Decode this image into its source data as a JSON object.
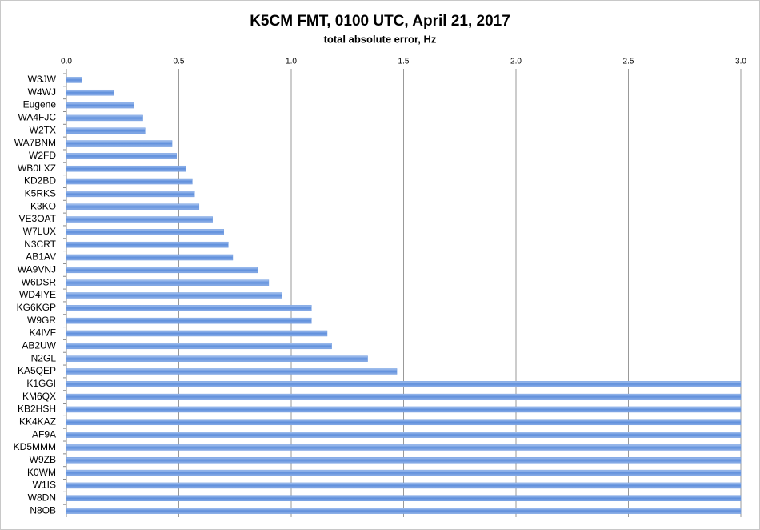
{
  "chart_data": {
    "type": "bar",
    "orientation": "horizontal",
    "title": "K5CM FMT, 0100 UTC, April 21, 2017",
    "subtitle": "total absolute error, Hz",
    "categories": [
      "W3JW",
      "W4WJ",
      "Eugene",
      "WA4FJC",
      "W2TX",
      "WA7BNM",
      "W2FD",
      "WB0LXZ",
      "KD2BD",
      "K5RKS",
      "K3KO",
      "VE3OAT",
      "W7LUX",
      "N3CRT",
      "AB1AV",
      "WA9VNJ",
      "W6DSR",
      "WD4IYE",
      "KG6KGP",
      "W9GR",
      "K4IVF",
      "AB2UW",
      "N2GL",
      "KA5QEP",
      "K1GGI",
      "KM6QX",
      "KB2HSH",
      "KK4KAZ",
      "AF9A",
      "KD5MMM",
      "W9ZB",
      "K0WM",
      "W1IS",
      "W8DN",
      "N8OB"
    ],
    "values": [
      0.07,
      0.21,
      0.3,
      0.34,
      0.35,
      0.47,
      0.49,
      0.53,
      0.56,
      0.57,
      0.59,
      0.65,
      0.7,
      0.72,
      0.74,
      0.85,
      0.9,
      0.96,
      1.09,
      1.09,
      1.16,
      1.18,
      1.34,
      1.47,
      3.0,
      3.0,
      3.0,
      3.0,
      3.0,
      3.0,
      3.0,
      3.0,
      3.0,
      3.0,
      3.0
    ],
    "color": "#6f9be0",
    "xlim": [
      0,
      3.0
    ],
    "xticks": [
      {
        "value": 0,
        "label": "0.0"
      },
      0.5,
      {
        "value": 1,
        "label": "1.0"
      },
      1.5,
      {
        "value": 2,
        "label": "2.0"
      },
      2.5,
      {
        "value": 3,
        "label": "3.0"
      }
    ],
    "grid": true
  }
}
